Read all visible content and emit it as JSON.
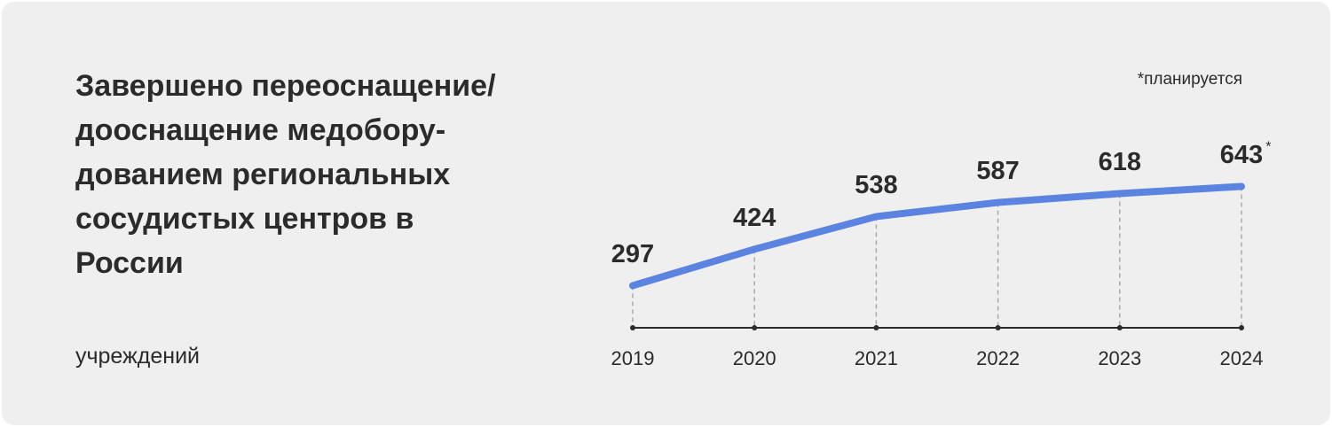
{
  "chart_data": {
    "type": "line",
    "title": "Завершено переоснащение/\nдооснащение медобору-\nдованием региональных\nсосудистых центров в\nРоссии",
    "unit_label": "учреждений",
    "note": "*планируется",
    "last_value_marker": "*",
    "categories": [
      "2019",
      "2020",
      "2021",
      "2022",
      "2023",
      "2024"
    ],
    "values": [
      297,
      424,
      538,
      587,
      618,
      643
    ],
    "color": "#5b84e0",
    "ylim": [
      150,
      700
    ]
  }
}
